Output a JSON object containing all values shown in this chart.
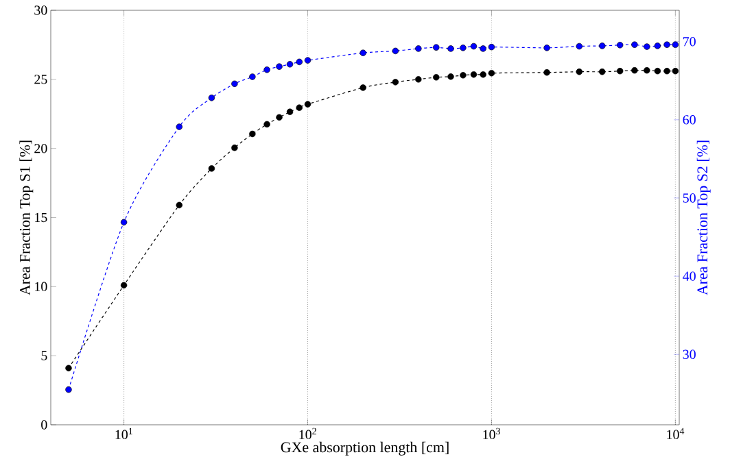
{
  "chart_data": {
    "type": "line",
    "xlabel": "GXe absorption length [cm]",
    "ylabel": "Area Fraction Top S1 [%]",
    "y2label": "Area Fraction Top S2 [%]",
    "x": [
      5,
      10,
      20,
      30,
      40,
      50,
      60,
      70,
      80,
      90,
      100,
      200,
      300,
      400,
      500,
      600,
      700,
      800,
      900,
      1000,
      2000,
      3000,
      4000,
      5000,
      6000,
      7000,
      8000,
      9000,
      10000
    ],
    "series": [
      {
        "color": "#000000",
        "values": [
          4.1,
          10.1,
          15.9,
          18.55,
          20.05,
          21.05,
          21.75,
          22.25,
          22.65,
          22.95,
          23.2,
          24.4,
          24.8,
          25.0,
          25.15,
          25.2,
          25.3,
          25.35,
          25.35,
          25.45,
          25.5,
          25.55,
          25.55,
          25.6,
          25.65,
          25.65,
          25.6,
          25.6,
          25.6
        ]
      },
      {
        "color": "#0000ff",
        "axis": "y2",
        "values": [
          25.5,
          46.9,
          59.1,
          62.8,
          64.6,
          65.5,
          66.4,
          66.8,
          67.1,
          67.4,
          67.6,
          68.55,
          68.8,
          69.1,
          69.25,
          69.1,
          69.2,
          69.4,
          69.1,
          69.3,
          69.2,
          69.4,
          69.45,
          69.55,
          69.6,
          69.35,
          69.45,
          69.6,
          69.6
        ]
      }
    ],
    "log": "x",
    "xlim": [
      4,
      10500
    ],
    "ylim": [
      0,
      30
    ],
    "y2lim": [
      21,
      74
    ],
    "xticks": [
      {
        "value": 10,
        "label": "10$^{1}$"
      },
      {
        "value": 100,
        "label": "10$^{2}$"
      },
      {
        "value": 1000,
        "label": "10$^{3}$"
      },
      {
        "value": 10000,
        "label": "10$^{4}$"
      }
    ],
    "yticks": [
      0,
      5,
      10,
      15,
      20,
      25,
      30
    ],
    "y2ticks": [
      30,
      40,
      50,
      60,
      70
    ],
    "grid": "x",
    "marker": "circle",
    "line_style": "dashed"
  }
}
